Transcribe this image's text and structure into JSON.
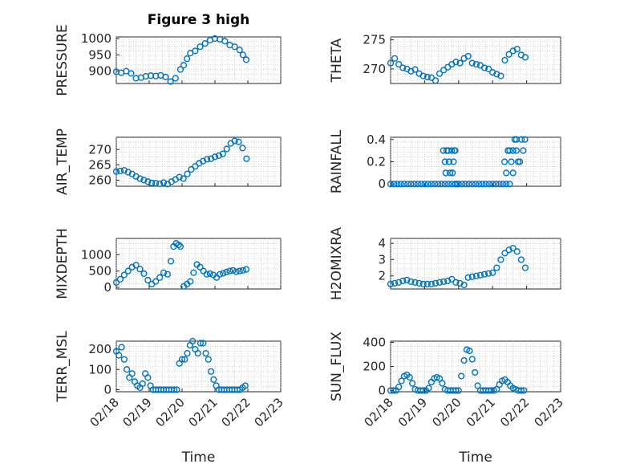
{
  "figure_title": "Figure 3 high",
  "colors": {
    "marker": "#0072BD",
    "axis": "#262626",
    "grid": "#b0b0b0"
  },
  "chart_data": [
    {
      "id": "pressure",
      "type": "scatter",
      "title": "Figure 3 high",
      "ylabel": "PRESSURE",
      "xlabel": "",
      "xlim": [
        0,
        5
      ],
      "ylim": [
        862,
        1005
      ],
      "yticks": [
        900,
        950,
        1000
      ],
      "xticks": [
        0,
        1,
        2,
        3,
        4,
        5
      ],
      "xticklabels": [],
      "grid": true,
      "x": [
        0,
        0.15,
        0.3,
        0.45,
        0.6,
        0.75,
        0.9,
        1.05,
        1.2,
        1.35,
        1.5,
        1.65,
        1.8,
        1.95,
        2.05,
        2.15,
        2.25,
        2.4,
        2.55,
        2.7,
        2.85,
        3,
        3.15,
        3.3,
        3.45,
        3.6,
        3.75,
        3.85,
        3.95
      ],
      "y": [
        898,
        895,
        900,
        893,
        878,
        880,
        884,
        886,
        885,
        887,
        882,
        868,
        878,
        905,
        918,
        938,
        955,
        962,
        975,
        985,
        995,
        1000,
        998,
        992,
        980,
        975,
        965,
        950,
        935
      ]
    },
    {
      "id": "theta",
      "type": "scatter",
      "ylabel": "THETA",
      "xlabel": "",
      "xlim": [
        0,
        5
      ],
      "ylim": [
        267.5,
        275.5
      ],
      "yticks": [
        270,
        275
      ],
      "xticks": [
        0,
        1,
        2,
        3,
        4,
        5
      ],
      "xticklabels": [],
      "grid": true,
      "x": [
        0,
        0.12,
        0.24,
        0.36,
        0.48,
        0.6,
        0.72,
        0.84,
        0.96,
        1.08,
        1.2,
        1.32,
        1.44,
        1.56,
        1.68,
        1.8,
        1.92,
        2.04,
        2.16,
        2.28,
        2.4,
        2.52,
        2.64,
        2.76,
        2.88,
        3,
        3.12,
        3.24,
        3.36,
        3.48,
        3.6,
        3.72,
        3.84,
        3.96
      ],
      "y": [
        271,
        271.8,
        270.8,
        270.2,
        270,
        269.6,
        269.9,
        269.2,
        268.8,
        268.6,
        268.5,
        268,
        269.2,
        269.8,
        270.3,
        270.8,
        271.2,
        271,
        271.8,
        272.2,
        271,
        270.8,
        270.6,
        270.2,
        270,
        269.4,
        269.1,
        268.8,
        271.5,
        272.5,
        273.1,
        273.4,
        272.4,
        272
      ]
    },
    {
      "id": "air_temp",
      "type": "scatter",
      "ylabel": "AIR_TEMP",
      "xlabel": "",
      "xlim": [
        0,
        5
      ],
      "ylim": [
        258,
        274
      ],
      "yticks": [
        260,
        265,
        270
      ],
      "xticks": [
        0,
        1,
        2,
        3,
        4,
        5
      ],
      "xticklabels": [],
      "grid": true,
      "x": [
        0,
        0.12,
        0.24,
        0.36,
        0.48,
        0.6,
        0.72,
        0.84,
        0.96,
        1.08,
        1.2,
        1.32,
        1.44,
        1.56,
        1.68,
        1.8,
        1.92,
        2.04,
        2.16,
        2.28,
        2.4,
        2.52,
        2.64,
        2.76,
        2.88,
        3,
        3.12,
        3.24,
        3.36,
        3.48,
        3.6,
        3.72,
        3.84,
        3.96
      ],
      "y": [
        262.8,
        263,
        263.2,
        262.6,
        262,
        261.2,
        260.5,
        260,
        259.5,
        259.1,
        259,
        258.8,
        259.2,
        258.7,
        259.5,
        260.2,
        261,
        260.5,
        262,
        263.5,
        264.5,
        265.5,
        266.2,
        266.8,
        267,
        267.6,
        268,
        268.6,
        270.2,
        272,
        272.8,
        272.5,
        270.5,
        267
      ]
    },
    {
      "id": "rainfall",
      "type": "scatter",
      "ylabel": "RAINFALL",
      "xlabel": "",
      "xlim": [
        0,
        5
      ],
      "ylim": [
        -0.02,
        0.42
      ],
      "yticks": [
        0,
        0.2,
        0.4
      ],
      "xticks": [
        0,
        1,
        2,
        3,
        4,
        5
      ],
      "xticklabels": [],
      "grid": true,
      "x": [
        0,
        0.1,
        0.2,
        0.3,
        0.4,
        0.5,
        0.6,
        0.7,
        0.8,
        0.9,
        1.0,
        1.1,
        1.2,
        1.3,
        1.4,
        1.5,
        1.6,
        1.7,
        1.8,
        1.9,
        2.0,
        2.1,
        2.2,
        2.3,
        2.4,
        2.5,
        2.6,
        2.7,
        2.8,
        2.9,
        3.0,
        3.1,
        3.2,
        3.3,
        3.4,
        3.5,
        1.55,
        1.6,
        1.65,
        1.7,
        1.75,
        1.8,
        1.85,
        1.9,
        1.95,
        1.62,
        1.72,
        1.82,
        1.88,
        3.35,
        3.4,
        3.45,
        3.5,
        3.55,
        3.6,
        3.65,
        3.7,
        3.75,
        3.8,
        3.85,
        3.9,
        3.95,
        3.6,
        3.7
      ],
      "y": [
        0,
        0,
        0,
        0,
        0,
        0,
        0,
        0,
        0,
        0,
        0,
        0,
        0,
        0,
        0,
        0,
        0,
        0,
        0,
        0,
        0,
        0,
        0,
        0,
        0,
        0,
        0,
        0,
        0,
        0,
        0,
        0,
        0,
        0,
        0,
        0,
        0.3,
        0.2,
        0.3,
        0.3,
        0.1,
        0.3,
        0.2,
        0.3,
        0,
        0.1,
        0.2,
        0.1,
        0.3,
        0.2,
        0.1,
        0.3,
        0.3,
        0.2,
        0.3,
        0.4,
        0.4,
        0.2,
        0.2,
        0.4,
        0.3,
        0.4,
        0.1,
        0.3
      ]
    },
    {
      "id": "mixdepth",
      "type": "scatter",
      "ylabel": "MIXDEPTH",
      "xlabel": "",
      "xlim": [
        0,
        5
      ],
      "ylim": [
        -50,
        1500
      ],
      "yticks": [
        0,
        500,
        1000
      ],
      "xticks": [
        0,
        1,
        2,
        3,
        4,
        5
      ],
      "xticklabels": [],
      "grid": true,
      "x": [
        0,
        0.12,
        0.24,
        0.36,
        0.48,
        0.6,
        0.72,
        0.84,
        0.96,
        1.08,
        1.2,
        1.32,
        1.44,
        1.56,
        1.66,
        1.74,
        1.82,
        1.9,
        1.95,
        2.05,
        2.15,
        2.25,
        2.35,
        2.45,
        2.55,
        2.65,
        2.75,
        2.85,
        2.95,
        3.05,
        3.15,
        3.25,
        3.35,
        3.45,
        3.55,
        3.65,
        3.75,
        3.85,
        3.95
      ],
      "y": [
        150,
        250,
        380,
        500,
        620,
        680,
        560,
        420,
        220,
        100,
        180,
        300,
        450,
        400,
        800,
        1250,
        1350,
        1300,
        1250,
        30,
        100,
        180,
        450,
        700,
        620,
        500,
        400,
        420,
        380,
        300,
        400,
        430,
        470,
        500,
        520,
        480,
        500,
        520,
        550
      ]
    },
    {
      "id": "h2omixra",
      "type": "scatter",
      "ylabel": "H2OMIXRA",
      "xlabel": "",
      "xlim": [
        0,
        5
      ],
      "ylim": [
        1.2,
        4.3
      ],
      "yticks": [
        2,
        3,
        4
      ],
      "xticks": [
        0,
        1,
        2,
        3,
        4,
        5
      ],
      "xticklabels": [],
      "grid": true,
      "x": [
        0,
        0.12,
        0.24,
        0.36,
        0.48,
        0.6,
        0.72,
        0.84,
        0.96,
        1.08,
        1.2,
        1.32,
        1.44,
        1.56,
        1.68,
        1.8,
        1.92,
        2.04,
        2.16,
        2.28,
        2.4,
        2.52,
        2.64,
        2.76,
        2.88,
        3,
        3.12,
        3.24,
        3.36,
        3.48,
        3.6,
        3.72,
        3.84,
        3.96
      ],
      "y": [
        1.5,
        1.55,
        1.6,
        1.7,
        1.75,
        1.65,
        1.6,
        1.55,
        1.5,
        1.5,
        1.5,
        1.55,
        1.6,
        1.65,
        1.7,
        1.8,
        1.6,
        1.55,
        1.45,
        1.9,
        1.95,
        2.0,
        2.05,
        2.1,
        2.15,
        2.2,
        2.5,
        3.0,
        3.4,
        3.6,
        3.7,
        3.5,
        3.0,
        2.5
      ]
    },
    {
      "id": "terr_msl",
      "type": "scatter",
      "ylabel": "TERR_MSL",
      "xlabel": "Time",
      "xlim": [
        0,
        5
      ],
      "ylim": [
        -10,
        240
      ],
      "yticks": [
        0,
        100,
        200
      ],
      "xticks": [
        0,
        1,
        2,
        3,
        4,
        5
      ],
      "xticklabels": [
        "02/18",
        "02/19",
        "02/20",
        "02/21",
        "02/22",
        "02/23"
      ],
      "grid": true,
      "x": [
        0,
        0.08,
        0.16,
        0.24,
        0.32,
        0.4,
        0.48,
        0.56,
        0.64,
        0.72,
        0.8,
        0.88,
        0.96,
        1.04,
        1.12,
        1.2,
        1.28,
        1.36,
        1.44,
        1.52,
        1.6,
        1.68,
        1.76,
        1.84,
        1.92,
        2.0,
        2.08,
        2.16,
        2.24,
        2.32,
        2.4,
        2.48,
        2.56,
        2.64,
        2.72,
        2.8,
        2.88,
        2.96,
        3.04,
        3.12,
        3.2,
        3.28,
        3.36,
        3.44,
        3.52,
        3.6,
        3.68,
        3.76,
        3.84,
        3.92
      ],
      "y": [
        190,
        170,
        210,
        150,
        100,
        60,
        80,
        40,
        20,
        10,
        30,
        80,
        60,
        20,
        0,
        0,
        0,
        0,
        0,
        0,
        0,
        0,
        0,
        0,
        130,
        150,
        150,
        180,
        220,
        240,
        200,
        180,
        230,
        230,
        180,
        150,
        90,
        50,
        20,
        0,
        0,
        0,
        0,
        0,
        0,
        0,
        0,
        0,
        10,
        20
      ]
    },
    {
      "id": "sun_flux",
      "type": "scatter",
      "ylabel": "SUN_FLUX",
      "xlabel": "Time",
      "xlim": [
        0,
        5
      ],
      "ylim": [
        -10,
        410
      ],
      "yticks": [
        0,
        200,
        400
      ],
      "xticks": [
        0,
        1,
        2,
        3,
        4,
        5
      ],
      "xticklabels": [
        "02/18",
        "02/19",
        "02/20",
        "02/21",
        "02/22",
        "02/23"
      ],
      "grid": true,
      "x": [
        0,
        0.08,
        0.16,
        0.24,
        0.32,
        0.4,
        0.48,
        0.56,
        0.64,
        0.72,
        0.8,
        0.88,
        0.96,
        1.04,
        1.12,
        1.2,
        1.28,
        1.36,
        1.44,
        1.52,
        1.6,
        1.68,
        1.76,
        1.84,
        1.92,
        2.0,
        2.08,
        2.16,
        2.24,
        2.32,
        2.4,
        2.48,
        2.56,
        2.64,
        2.72,
        2.8,
        2.88,
        2.96,
        3.04,
        3.12,
        3.2,
        3.28,
        3.36,
        3.44,
        3.52,
        3.6,
        3.68,
        3.76,
        3.84,
        3.92
      ],
      "y": [
        0,
        0,
        0,
        30,
        80,
        120,
        130,
        110,
        60,
        10,
        0,
        0,
        0,
        0,
        20,
        70,
        100,
        110,
        100,
        60,
        10,
        0,
        0,
        0,
        0,
        0,
        120,
        250,
        340,
        330,
        260,
        150,
        40,
        0,
        0,
        0,
        0,
        0,
        0,
        10,
        50,
        80,
        90,
        70,
        40,
        20,
        10,
        0,
        0,
        0
      ]
    }
  ]
}
